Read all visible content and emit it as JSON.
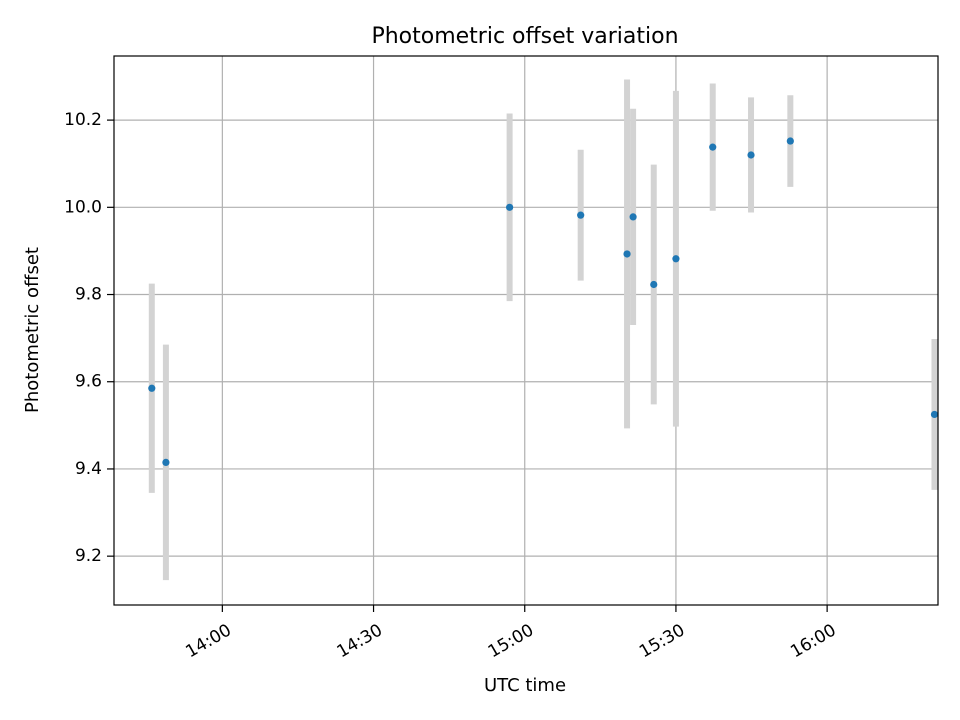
{
  "chart_data": {
    "type": "scatter",
    "title": "Photometric offset variation",
    "xlabel": "UTC time",
    "ylabel": "Photometric offset",
    "grid": true,
    "x_axis": {
      "unit": "minutes after 00:00 UTC",
      "range": [
        818.5,
        982
      ],
      "ticks": [
        {
          "value": 840,
          "label": "14:00"
        },
        {
          "value": 870,
          "label": "14:30"
        },
        {
          "value": 900,
          "label": "15:00"
        },
        {
          "value": 930,
          "label": "15:30"
        },
        {
          "value": 960,
          "label": "16:00"
        }
      ]
    },
    "y_axis": {
      "range": [
        9.088,
        10.347
      ],
      "ticks": [
        {
          "value": 9.2,
          "label": "9.2"
        },
        {
          "value": 9.4,
          "label": "9.4"
        },
        {
          "value": 9.6,
          "label": "9.6"
        },
        {
          "value": 9.8,
          "label": "9.8"
        },
        {
          "value": 10.0,
          "label": "10.0"
        },
        {
          "value": 10.2,
          "label": "10.2"
        }
      ]
    },
    "marker_color": "#1f77b4",
    "errorbar_color": "#d3d3d3",
    "points": [
      {
        "x": 826.0,
        "y": 9.585,
        "err": 0.24
      },
      {
        "x": 828.8,
        "y": 9.415,
        "err": 0.27
      },
      {
        "x": 897.0,
        "y": 10.0,
        "err": 0.215
      },
      {
        "x": 911.1,
        "y": 9.982,
        "err": 0.15
      },
      {
        "x": 920.3,
        "y": 9.893,
        "err": 0.4
      },
      {
        "x": 921.5,
        "y": 9.978,
        "err": 0.248
      },
      {
        "x": 925.6,
        "y": 9.823,
        "err": 0.275
      },
      {
        "x": 930.0,
        "y": 9.882,
        "err": 0.385
      },
      {
        "x": 937.3,
        "y": 10.138,
        "err": 0.146
      },
      {
        "x": 944.9,
        "y": 10.12,
        "err": 0.132
      },
      {
        "x": 952.7,
        "y": 10.152,
        "err": 0.105
      },
      {
        "x": 981.3,
        "y": 9.525,
        "err": 0.173
      }
    ]
  }
}
